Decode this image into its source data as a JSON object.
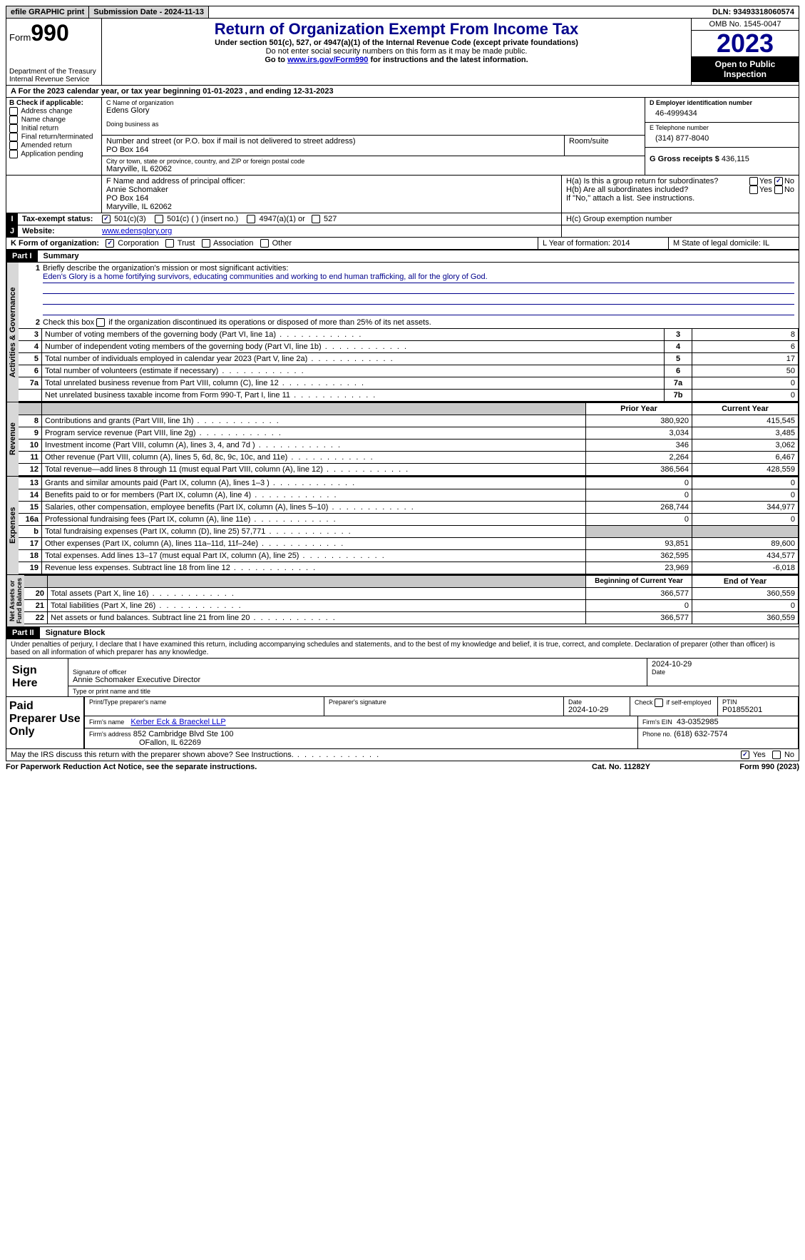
{
  "topbar": {
    "efile": "efile GRAPHIC print",
    "submission_label": "Submission Date - 2024-11-13",
    "dln_label": "DLN: 93493318060574"
  },
  "header": {
    "form_prefix": "Form",
    "form_number": "990",
    "dept": "Department of the Treasury Internal Revenue Service",
    "title": "Return of Organization Exempt From Income Tax",
    "subtitle": "Under section 501(c), 527, or 4947(a)(1) of the Internal Revenue Code (except private foundations)",
    "note1": "Do not enter social security numbers on this form as it may be made public.",
    "note2_pre": "Go to ",
    "note2_link": "www.irs.gov/Form990",
    "note2_post": " for instructions and the latest information.",
    "omb": "OMB No. 1545-0047",
    "year": "2023",
    "open": "Open to Public Inspection"
  },
  "rowA": "A For the 2023 calendar year, or tax year beginning 01-01-2023   , and ending 12-31-2023",
  "B": {
    "label": "B Check if applicable:",
    "items": [
      "Address change",
      "Name change",
      "Initial return",
      "Final return/terminated",
      "Amended return",
      "Application pending"
    ]
  },
  "C": {
    "name_lbl": "C Name of organization",
    "name": "Edens Glory",
    "dba_lbl": "Doing business as",
    "street_lbl": "Number and street (or P.O. box if mail is not delivered to street address)",
    "street": "PO Box 164",
    "room_lbl": "Room/suite",
    "city_lbl": "City or town, state or province, country, and ZIP or foreign postal code",
    "city": "Maryville, IL  62062"
  },
  "D": {
    "lbl": "D Employer identification number",
    "val": "46-4999434"
  },
  "E": {
    "lbl": "E Telephone number",
    "val": "(314) 877-8040"
  },
  "G": {
    "lbl": "G Gross receipts $",
    "val": "436,115"
  },
  "F": {
    "lbl": "F  Name and address of principal officer:",
    "l1": "Annie Schomaker",
    "l2": "PO Box 164",
    "l3": "Maryville, IL  62062"
  },
  "H": {
    "a": "H(a)  Is this a group return for subordinates?",
    "b": "H(b)  Are all subordinates included?",
    "note": "If \"No,\" attach a list. See instructions.",
    "c": "H(c)  Group exemption number"
  },
  "I": {
    "label": "Tax-exempt status:",
    "o1": "501(c)(3)",
    "o2": "501(c) (  ) (insert no.)",
    "o3": "4947(a)(1) or",
    "o4": "527"
  },
  "J": {
    "label": "Website:",
    "val": "www.edensglory.org"
  },
  "K": {
    "label": "K Form of organization:",
    "o1": "Corporation",
    "o2": "Trust",
    "o3": "Association",
    "o4": "Other"
  },
  "L": "L Year of formation: 2014",
  "M": "M State of legal domicile: IL",
  "part1": {
    "hdr": "Part I",
    "title": "Summary",
    "l1a": "Briefly describe the organization's mission or most significant activities:",
    "l1b": "Eden's Glory is a home fortifying survivors, educating communities and working to end human trafficking, all for the glory of God.",
    "l2": "Check this box       if the organization discontinued its operations or disposed of more than 25% of its net assets.",
    "rows_gov": [
      {
        "n": "3",
        "t": "Number of voting members of the governing body (Part VI, line 1a)",
        "box": "3",
        "v": "8"
      },
      {
        "n": "4",
        "t": "Number of independent voting members of the governing body (Part VI, line 1b)",
        "box": "4",
        "v": "6"
      },
      {
        "n": "5",
        "t": "Total number of individuals employed in calendar year 2023 (Part V, line 2a)",
        "box": "5",
        "v": "17"
      },
      {
        "n": "6",
        "t": "Total number of volunteers (estimate if necessary)",
        "box": "6",
        "v": "50"
      },
      {
        "n": "7a",
        "t": "Total unrelated business revenue from Part VIII, column (C), line 12",
        "box": "7a",
        "v": "0"
      },
      {
        "n": "",
        "t": "Net unrelated business taxable income from Form 990-T, Part I, line 11",
        "box": "7b",
        "v": "0"
      }
    ],
    "hdr_prior": "Prior Year",
    "hdr_current": "Current Year",
    "rows_rev": [
      {
        "n": "8",
        "t": "Contributions and grants (Part VIII, line 1h)",
        "p": "380,920",
        "c": "415,545"
      },
      {
        "n": "9",
        "t": "Program service revenue (Part VIII, line 2g)",
        "p": "3,034",
        "c": "3,485"
      },
      {
        "n": "10",
        "t": "Investment income (Part VIII, column (A), lines 3, 4, and 7d )",
        "p": "346",
        "c": "3,062"
      },
      {
        "n": "11",
        "t": "Other revenue (Part VIII, column (A), lines 5, 6d, 8c, 9c, 10c, and 11e)",
        "p": "2,264",
        "c": "6,467"
      },
      {
        "n": "12",
        "t": "Total revenue—add lines 8 through 11 (must equal Part VIII, column (A), line 12)",
        "p": "386,564",
        "c": "428,559"
      }
    ],
    "rows_exp": [
      {
        "n": "13",
        "t": "Grants and similar amounts paid (Part IX, column (A), lines 1–3 )",
        "p": "0",
        "c": "0"
      },
      {
        "n": "14",
        "t": "Benefits paid to or for members (Part IX, column (A), line 4)",
        "p": "0",
        "c": "0"
      },
      {
        "n": "15",
        "t": "Salaries, other compensation, employee benefits (Part IX, column (A), lines 5–10)",
        "p": "268,744",
        "c": "344,977"
      },
      {
        "n": "16a",
        "t": "Professional fundraising fees (Part IX, column (A), line 11e)",
        "p": "0",
        "c": "0"
      },
      {
        "n": "b",
        "t": "Total fundraising expenses (Part IX, column (D), line 25) 57,771",
        "p": "GREY",
        "c": "GREY"
      },
      {
        "n": "17",
        "t": "Other expenses (Part IX, column (A), lines 11a–11d, 11f–24e)",
        "p": "93,851",
        "c": "89,600"
      },
      {
        "n": "18",
        "t": "Total expenses. Add lines 13–17 (must equal Part IX, column (A), line 25)",
        "p": "362,595",
        "c": "434,577"
      },
      {
        "n": "19",
        "t": "Revenue less expenses. Subtract line 18 from line 12",
        "p": "23,969",
        "c": "-6,018"
      }
    ],
    "hdr_beg": "Beginning of Current Year",
    "hdr_end": "End of Year",
    "rows_net": [
      {
        "n": "20",
        "t": "Total assets (Part X, line 16)",
        "p": "366,577",
        "c": "360,559"
      },
      {
        "n": "21",
        "t": "Total liabilities (Part X, line 26)",
        "p": "0",
        "c": "0"
      },
      {
        "n": "22",
        "t": "Net assets or fund balances. Subtract line 21 from line 20",
        "p": "366,577",
        "c": "360,559"
      }
    ]
  },
  "part2": {
    "hdr": "Part II",
    "title": "Signature Block",
    "decl": "Under penalties of perjury, I declare that I have examined this return, including accompanying schedules and statements, and to the best of my knowledge and belief, it is true, correct, and complete. Declaration of preparer (other than officer) is based on all information of which preparer has any knowledge.",
    "sign_here": "Sign Here",
    "sig_officer": "Signature of officer",
    "sig_name": "Annie Schomaker  Executive Director",
    "sig_type": "Type or print name and title",
    "sig_date_lbl": "Date",
    "sig_date": "2024-10-29",
    "paid": "Paid Preparer Use Only",
    "pp_name_lbl": "Print/Type preparer's name",
    "pp_sig_lbl": "Preparer's signature",
    "pp_date_lbl": "Date",
    "pp_date": "2024-10-29",
    "pp_check": "Check         if self-employed",
    "pp_ptin_lbl": "PTIN",
    "pp_ptin": "P01855201",
    "firm_name_lbl": "Firm's name",
    "firm_name": "Kerber Eck & Braeckel LLP",
    "firm_ein_lbl": "Firm's EIN",
    "firm_ein": "43-0352985",
    "firm_addr_lbl": "Firm's address",
    "firm_addr1": "852 Cambridge Blvd Ste 100",
    "firm_addr2": "OFallon, IL  62269",
    "firm_phone_lbl": "Phone no.",
    "firm_phone": "(618) 632-7574",
    "discuss": "May the IRS discuss this return with the preparer shown above? See Instructions."
  },
  "footer": {
    "l": "For Paperwork Reduction Act Notice, see the separate instructions.",
    "m": "Cat. No. 11282Y",
    "r": "Form 990 (2023)"
  },
  "labels": {
    "yes": "Yes",
    "no": "No"
  }
}
